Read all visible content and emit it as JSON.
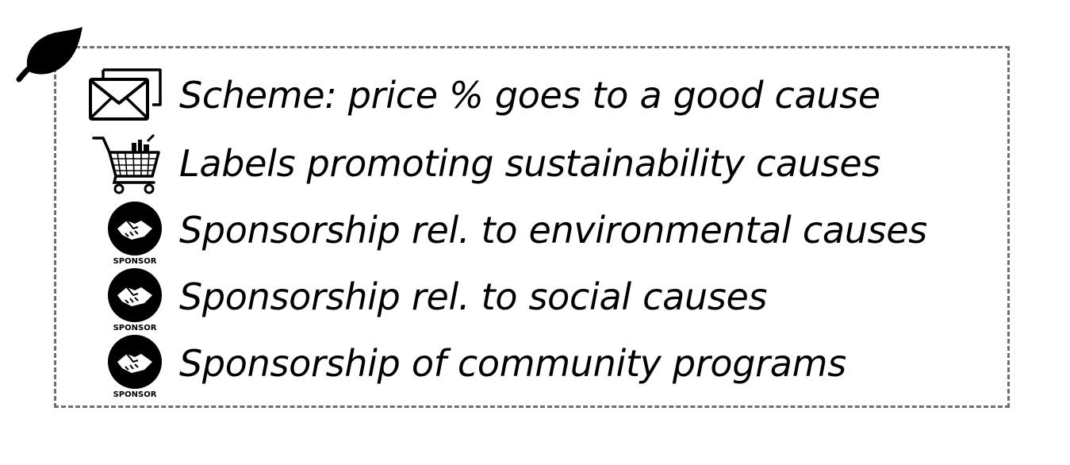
{
  "items": [
    {
      "icon": "envelope-icon",
      "label": "Scheme: price % goes to a good cause"
    },
    {
      "icon": "shopping-cart-icon",
      "label": "Labels promoting sustainability causes"
    },
    {
      "icon": "sponsor-handshake-icon",
      "icon_text": "SPONSOR",
      "label": "Sponsorship rel. to environmental causes"
    },
    {
      "icon": "sponsor-handshake-icon",
      "icon_text": "SPONSOR",
      "label": "Sponsorship rel. to social causes"
    },
    {
      "icon": "sponsor-handshake-icon",
      "icon_text": "SPONSOR",
      "label": "Sponsorship of community programs"
    }
  ],
  "corner_icon": "leaf-icon",
  "colors": {
    "border": "#6f6f6f",
    "icon": "#000000",
    "text": "#000000"
  }
}
